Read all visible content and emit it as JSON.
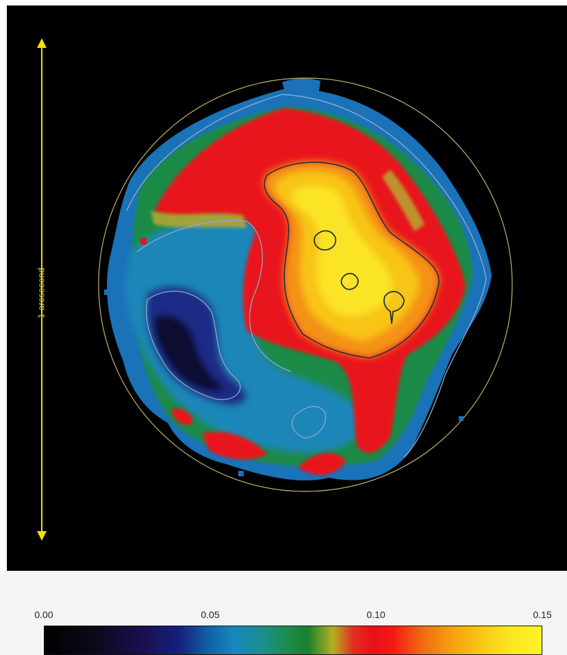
{
  "figure": {
    "scale_label": "1 arcsecond"
  },
  "colorbar": {
    "ticks": [
      "0.00",
      "0.05",
      "0.10",
      "0.15"
    ],
    "min": 0.0,
    "max": 0.15
  },
  "colors": {
    "background": "#000000",
    "scale_arrow": "#f3e000",
    "aperture_circle": "#c9b468",
    "contour_light": "#8fa8c8",
    "contour_dark": "#203040"
  }
}
